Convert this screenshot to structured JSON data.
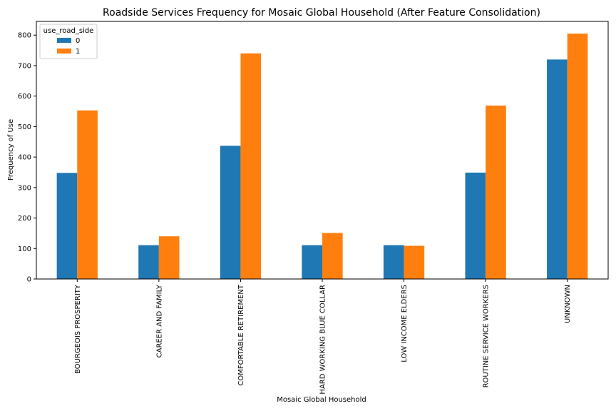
{
  "chart_data": {
    "type": "bar",
    "title": "Roadside Services Frequency for Mosaic Global Household (After Feature Consolidation)",
    "xlabel": "Mosaic Global Household",
    "ylabel": "Frequency of Use",
    "categories": [
      "BOURGEOIS PROSPERITY",
      "CAREER AND FAMILY",
      "COMFORTABLE RETIREMENT",
      "HARD WORKING BLUE COLLAR",
      "LOW INCOME ELDERS",
      "ROUTINE SERVICE WORKERS",
      "UNKNOWN"
    ],
    "legend_title": "use_road_side",
    "legend_placement": "top-left",
    "series": [
      {
        "name": "0",
        "color": "#1f77b4",
        "values": [
          348,
          111,
          437,
          111,
          111,
          349,
          720
        ]
      },
      {
        "name": "1",
        "color": "#ff7f0e",
        "values": [
          553,
          140,
          740,
          151,
          109,
          569,
          805
        ]
      }
    ],
    "ylim": [
      0,
      845
    ],
    "yticks": [
      0,
      100,
      200,
      300,
      400,
      500,
      600,
      700,
      800
    ],
    "grid": false
  }
}
